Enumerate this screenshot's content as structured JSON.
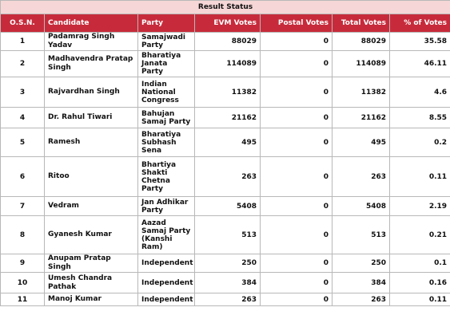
{
  "title": "Result Status",
  "columns": {
    "osn": "O.S.N.",
    "candidate": "Candidate",
    "party": "Party",
    "evm": "EVM Votes",
    "postal": "Postal Votes",
    "total": "Total Votes",
    "pct": "% of Votes"
  },
  "rows": [
    {
      "osn": "1",
      "candidate": "Padamrag Singh Yadav",
      "party": "Samajwadi Party",
      "evm": "88029",
      "postal": "0",
      "total": "88029",
      "pct": "35.58"
    },
    {
      "osn": "2",
      "candidate": "Madhavendra Pratap Singh",
      "party": "Bharatiya Janata Party",
      "evm": "114089",
      "postal": "0",
      "total": "114089",
      "pct": "46.11"
    },
    {
      "osn": "3",
      "candidate": "Rajvardhan Singh",
      "party": "Indian National Congress",
      "evm": "11382",
      "postal": "0",
      "total": "11382",
      "pct": "4.6"
    },
    {
      "osn": "4",
      "candidate": "Dr. Rahul Tiwari",
      "party": "Bahujan Samaj Party",
      "evm": "21162",
      "postal": "0",
      "total": "21162",
      "pct": "8.55"
    },
    {
      "osn": "5",
      "candidate": "Ramesh",
      "party": "Bharatiya Subhash Sena",
      "evm": "495",
      "postal": "0",
      "total": "495",
      "pct": "0.2"
    },
    {
      "osn": "6",
      "candidate": "Ritoo",
      "party": "Bhartiya Shakti Chetna Party",
      "evm": "263",
      "postal": "0",
      "total": "263",
      "pct": "0.11"
    },
    {
      "osn": "7",
      "candidate": "Vedram",
      "party": "Jan Adhikar Party",
      "evm": "5408",
      "postal": "0",
      "total": "5408",
      "pct": "2.19"
    },
    {
      "osn": "8",
      "candidate": "Gyanesh Kumar",
      "party": "Aazad Samaj Party (Kanshi Ram)",
      "evm": "513",
      "postal": "0",
      "total": "513",
      "pct": "0.21"
    },
    {
      "osn": "9",
      "candidate": "Anupam Pratap Singh",
      "party": "Independent",
      "evm": "250",
      "postal": "0",
      "total": "250",
      "pct": "0.1"
    },
    {
      "osn": "10",
      "candidate": "Umesh Chandra Pathak",
      "party": "Independent",
      "evm": "384",
      "postal": "0",
      "total": "384",
      "pct": "0.16"
    },
    {
      "osn": "11",
      "candidate": "Manoj Kumar",
      "party": "Independent",
      "evm": "263",
      "postal": "0",
      "total": "263",
      "pct": "0.11"
    }
  ]
}
